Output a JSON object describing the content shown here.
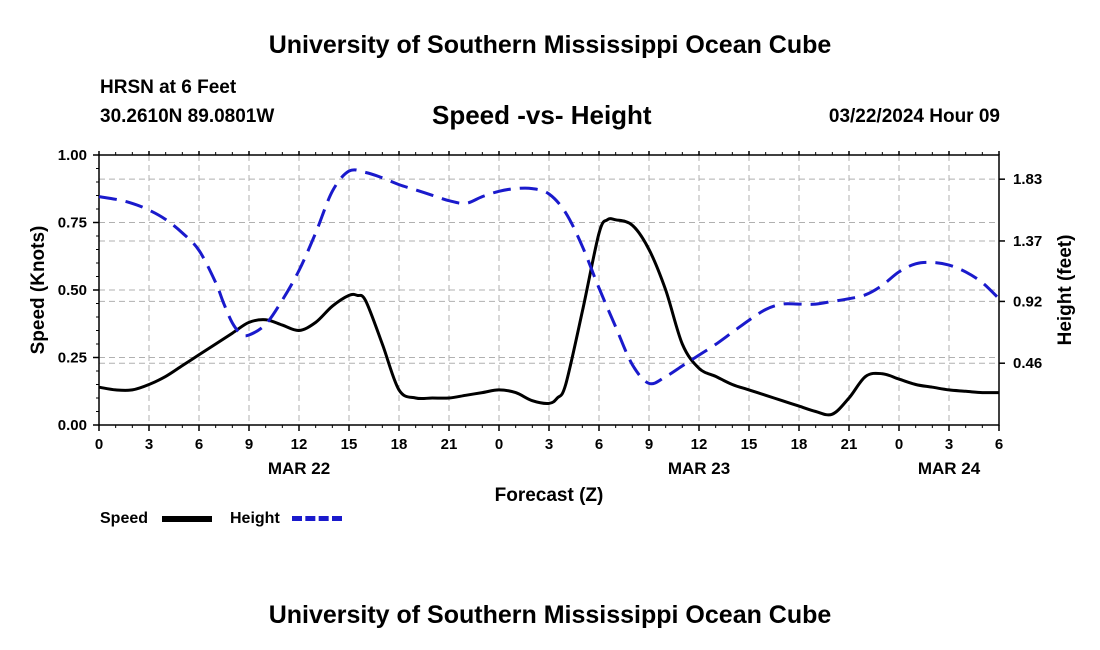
{
  "header": {
    "title": "University of Southern Mississippi Ocean Cube",
    "station": "HRSN at 6 Feet",
    "coords": "30.2610N  89.0801W",
    "datetime": "03/22/2024 Hour 09"
  },
  "footer": {
    "title": "University of Southern Mississippi Ocean Cube"
  },
  "legend": {
    "speed_label": "Speed",
    "height_label": "Height"
  },
  "colors": {
    "speed": "#000000",
    "height": "#1a1acc",
    "grid": "#b0b0b0"
  },
  "chart_data": {
    "type": "line",
    "title": "Speed -vs- Height",
    "xlabel": "Forecast (Z)",
    "ylabel": "Speed (Knots)",
    "y2label": "Height (feet)",
    "xlim": [
      0,
      54
    ],
    "ylim": [
      0,
      1.0
    ],
    "y2lim": [
      0.0,
      2.01
    ],
    "x_tick_values": [
      0,
      3,
      6,
      9,
      12,
      15,
      18,
      21,
      24,
      27,
      30,
      33,
      36,
      39,
      42,
      45,
      48,
      51,
      54
    ],
    "x_tick_labels": [
      "0",
      "3",
      "6",
      "9",
      "12",
      "15",
      "18",
      "21",
      "0",
      "3",
      "6",
      "9",
      "12",
      "15",
      "18",
      "21",
      "0",
      "3",
      "6"
    ],
    "y_ticks": [
      0,
      0.25,
      0.5,
      0.75,
      1.0
    ],
    "y_tick_labels": [
      "0.00",
      "0.25",
      "0.50",
      "0.75",
      "1.00"
    ],
    "y2_ticks": [
      0.46,
      0.92,
      1.37,
      1.83
    ],
    "y2_tick_labels": [
      "0.46",
      "0.92",
      "1.37",
      "1.83"
    ],
    "date_labels": [
      {
        "x": 12,
        "label": "MAR 22"
      },
      {
        "x": 36,
        "label": "MAR 23"
      },
      {
        "x": 51,
        "label": "MAR 24"
      }
    ],
    "series": [
      {
        "name": "Speed",
        "axis": "left",
        "style": "solid",
        "x": [
          0,
          1,
          2,
          3,
          4,
          5,
          6,
          7,
          8,
          9,
          10,
          11,
          12,
          13,
          14,
          15,
          15.5,
          16,
          17,
          18,
          19,
          20,
          21,
          22,
          23,
          24,
          25,
          26,
          27,
          27.5,
          28,
          29,
          30,
          30.5,
          31,
          32,
          33,
          34,
          35,
          36,
          37,
          38,
          39,
          40,
          41,
          42,
          43,
          44,
          45,
          46,
          47,
          48,
          49,
          50,
          51,
          52,
          53,
          54
        ],
        "values": [
          0.14,
          0.13,
          0.13,
          0.15,
          0.18,
          0.22,
          0.26,
          0.3,
          0.34,
          0.38,
          0.39,
          0.37,
          0.35,
          0.38,
          0.44,
          0.48,
          0.48,
          0.46,
          0.3,
          0.13,
          0.1,
          0.1,
          0.1,
          0.11,
          0.12,
          0.13,
          0.12,
          0.09,
          0.08,
          0.1,
          0.15,
          0.42,
          0.71,
          0.76,
          0.76,
          0.74,
          0.65,
          0.5,
          0.3,
          0.21,
          0.18,
          0.15,
          0.13,
          0.11,
          0.09,
          0.07,
          0.05,
          0.04,
          0.1,
          0.18,
          0.19,
          0.17,
          0.15,
          0.14,
          0.13,
          0.125,
          0.12,
          0.12
        ]
      },
      {
        "name": "Height",
        "axis": "right",
        "style": "dashed",
        "x": [
          0,
          1,
          2,
          3,
          4,
          5,
          6,
          7,
          7.5,
          8,
          8.5,
          9,
          10,
          11,
          12,
          13,
          14,
          15,
          16,
          17,
          18,
          19,
          20,
          21,
          22,
          23,
          24,
          25,
          26,
          27,
          28,
          29,
          30,
          31,
          32,
          33,
          34,
          35,
          36,
          37,
          38,
          39,
          40,
          41,
          42,
          43,
          44,
          45,
          46,
          47,
          48,
          49,
          50,
          51,
          52,
          53,
          54
        ],
        "values": [
          1.7,
          1.68,
          1.65,
          1.6,
          1.53,
          1.43,
          1.3,
          1.06,
          0.9,
          0.76,
          0.68,
          0.67,
          0.75,
          0.93,
          1.15,
          1.43,
          1.74,
          1.89,
          1.88,
          1.84,
          1.79,
          1.75,
          1.71,
          1.67,
          1.65,
          1.7,
          1.74,
          1.76,
          1.76,
          1.72,
          1.58,
          1.33,
          1.02,
          0.73,
          0.45,
          0.31,
          0.36,
          0.44,
          0.52,
          0.6,
          0.69,
          0.78,
          0.86,
          0.9,
          0.9,
          0.9,
          0.92,
          0.94,
          0.97,
          1.04,
          1.14,
          1.2,
          1.21,
          1.19,
          1.14,
          1.06,
          0.94
        ]
      }
    ]
  }
}
